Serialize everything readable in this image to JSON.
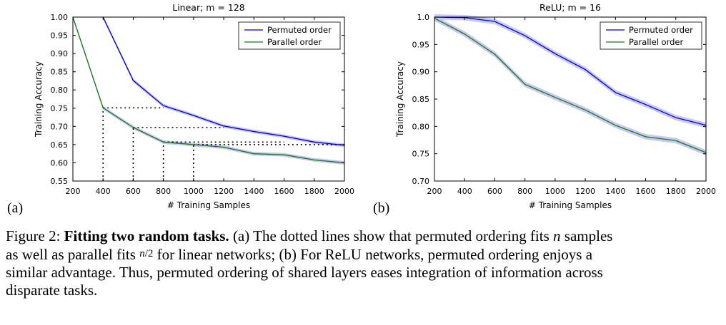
{
  "colors": {
    "blue": "#0000cc",
    "green": "#157a15",
    "band": "#c8c8f2",
    "axis": "#000000"
  },
  "chart_data": [
    {
      "type": "line",
      "panel_label": "(a)",
      "title": "Linear; m = 128",
      "xlabel": "# Training Samples",
      "ylabel": "Training Accuracy",
      "xlim": [
        200,
        2000
      ],
      "ylim": [
        0.55,
        1.0
      ],
      "xticks": [
        200,
        400,
        600,
        800,
        1000,
        1200,
        1400,
        1600,
        1800,
        2000
      ],
      "xtick_labels": [
        "200",
        "400",
        "600",
        "800",
        "1000",
        "1200",
        "1400",
        "1600",
        "1800",
        "2000"
      ],
      "yticks": [
        0.55,
        0.6,
        0.65,
        0.7,
        0.75,
        0.8,
        0.85,
        0.9,
        0.95,
        1.0
      ],
      "ytick_labels": [
        "0.55",
        "0.60",
        "0.65",
        "0.70",
        "0.75",
        "0.80",
        "0.85",
        "0.90",
        "0.95",
        "1.00"
      ],
      "legend_position": "top-right",
      "series": [
        {
          "name": "Permuted order",
          "color": "blue",
          "x": [
            400,
            600,
            800,
            1000,
            1200,
            1400,
            1600,
            1800,
            2000
          ],
          "y": [
            1.0,
            0.826,
            0.757,
            0.73,
            0.701,
            0.686,
            0.673,
            0.657,
            0.648
          ]
        },
        {
          "name": "Parallel order",
          "color": "green",
          "x": [
            200,
            400,
            600,
            800,
            1000,
            1200,
            1400,
            1600,
            1800,
            2000
          ],
          "y": [
            1.0,
            0.751,
            0.697,
            0.657,
            0.65,
            0.643,
            0.625,
            0.622,
            0.608,
            0.6
          ]
        }
      ],
      "dotted_guides": [
        {
          "n": 800,
          "half": 400,
          "acc": 0.751
        },
        {
          "n": 1200,
          "half": 600,
          "acc": 0.697
        },
        {
          "n": 1600,
          "half": 800,
          "acc": 0.657
        },
        {
          "n": 2000,
          "half": 1000,
          "acc": 0.65
        }
      ]
    },
    {
      "type": "line",
      "panel_label": "(b)",
      "title": "ReLU; m = 16",
      "xlabel": "# Training Samples",
      "ylabel": "Training Accuracy",
      "xlim": [
        200,
        2000
      ],
      "ylim": [
        0.7,
        1.0
      ],
      "xticks": [
        200,
        400,
        600,
        800,
        1000,
        1200,
        1400,
        1600,
        1800,
        2000
      ],
      "xtick_labels": [
        "200",
        "400",
        "600",
        "800",
        "1000",
        "1200",
        "1400",
        "1600",
        "1800",
        "2000"
      ],
      "yticks": [
        0.7,
        0.75,
        0.8,
        0.85,
        0.9,
        0.95,
        1.0
      ],
      "ytick_labels": [
        "0.70",
        "0.75",
        "0.80",
        "0.85",
        "0.90",
        "0.95",
        "1.0"
      ],
      "legend_position": "top-right",
      "series": [
        {
          "name": "Permuted order",
          "color": "blue",
          "x": [
            200,
            400,
            600,
            800,
            1000,
            1200,
            1400,
            1600,
            1800,
            2000
          ],
          "y": [
            1.0,
            0.999,
            0.992,
            0.966,
            0.933,
            0.904,
            0.862,
            0.84,
            0.816,
            0.802
          ]
        },
        {
          "name": "Parallel order",
          "color": "green",
          "x": [
            200,
            400,
            600,
            800,
            1000,
            1200,
            1400,
            1600,
            1800,
            2000
          ],
          "y": [
            0.998,
            0.969,
            0.932,
            0.877,
            0.853,
            0.83,
            0.802,
            0.781,
            0.774,
            0.752
          ]
        }
      ]
    }
  ],
  "caption": {
    "fig_label": "Figure 2:",
    "bold_title": "Fitting two random tasks.",
    "line1_text": "(a) The dotted lines show that permuted ordering fits ",
    "var_n": "n",
    "line1_tail": " samples",
    "line2_head": "as well as parallel fits ",
    "frac_num": "n",
    "frac_slash": "/",
    "frac_den": "2",
    "line2_tail": " for linear networks; (b) For ReLU networks, permuted ordering enjoys a",
    "line3": "similar advantage. Thus, permuted ordering of shared layers eases integration of information across",
    "line4": "disparate tasks."
  }
}
